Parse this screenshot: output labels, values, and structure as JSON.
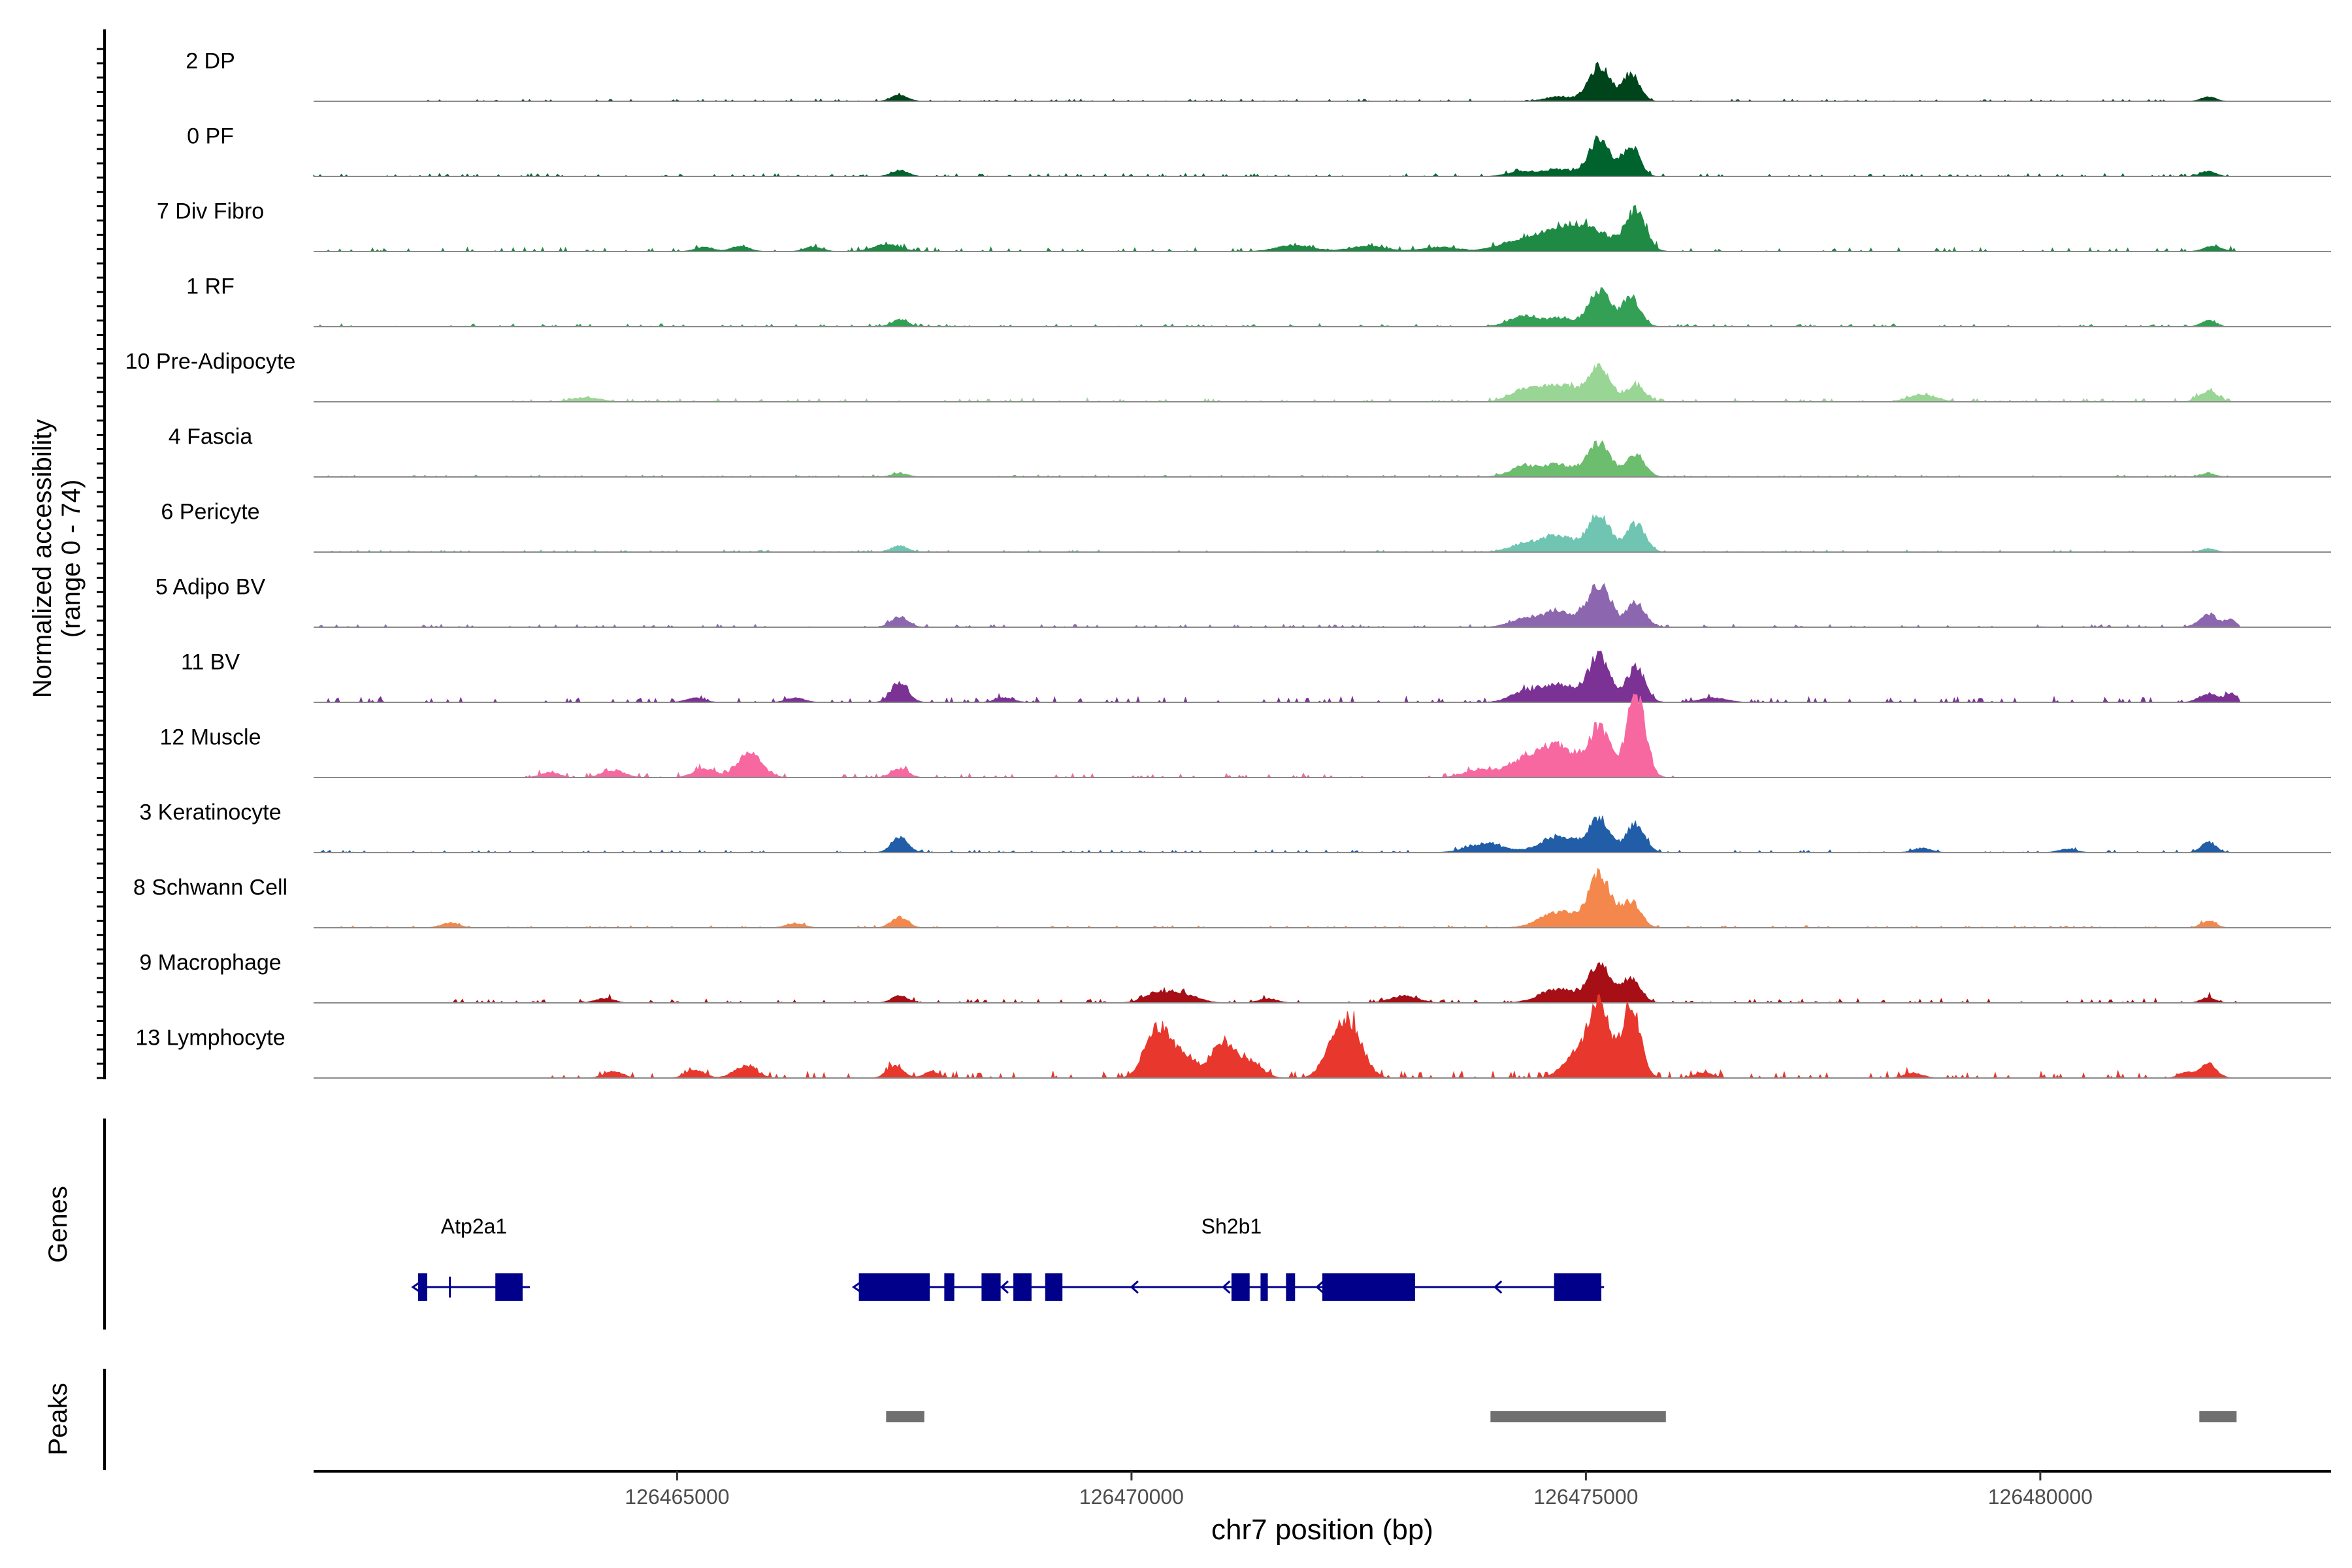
{
  "chart_data": {
    "type": "area",
    "title": "",
    "xlabel": "chr7 position (bp)",
    "ylabel": "Normalized accessibility\n(range 0 - 74)",
    "ylabel_line1": "Normalized accessibility",
    "ylabel_line2": "(range 0 - 74)",
    "y_range": [
      0,
      74
    ],
    "xlim": [
      126461000,
      126483200
    ],
    "x_ticks": [
      126465000,
      126470000,
      126475000,
      126480000
    ],
    "x_tick_labels": [
      "126465000",
      "126470000",
      "126475000",
      "126480000"
    ],
    "track_start": 126461000,
    "track_end": 126482200,
    "series": [
      {
        "name": "2 DP",
        "color": "#00441b",
        "peaks": [
          [
            126467450,
            7,
            90
          ],
          [
            126475150,
            40,
            120
          ],
          [
            126475500,
            32,
            90
          ],
          [
            126474700,
            5,
            150
          ],
          [
            126481850,
            5,
            80
          ]
        ],
        "noise": [
          [
            126462000,
            126481500,
            1.5
          ]
        ]
      },
      {
        "name": "0 PF",
        "color": "#00632e",
        "peaks": [
          [
            126467450,
            7,
            90
          ],
          [
            126475150,
            43,
            120
          ],
          [
            126475500,
            35,
            90
          ],
          [
            126474300,
            6,
            150
          ],
          [
            126474700,
            8,
            150
          ],
          [
            126481850,
            6,
            80
          ]
        ],
        "noise": [
          [
            126461000,
            126482200,
            2
          ]
        ]
      },
      {
        "name": "7 Div Fibro",
        "color": "#1e8a44",
        "peaks": [
          [
            126467300,
            8,
            150
          ],
          [
            126471800,
            7,
            200
          ],
          [
            126472600,
            6,
            200
          ],
          [
            126473400,
            5,
            200
          ],
          [
            126475000,
            28,
            250
          ],
          [
            126475550,
            45,
            110
          ],
          [
            126474600,
            18,
            200
          ],
          [
            126474200,
            10,
            200
          ],
          [
            126465700,
            6,
            100
          ],
          [
            126465300,
            5,
            100
          ],
          [
            126466500,
            5,
            100
          ],
          [
            126481900,
            6,
            100
          ]
        ],
        "noise": [
          [
            126461000,
            126482200,
            3
          ]
        ]
      },
      {
        "name": "1 RF",
        "color": "#33a056",
        "peaks": [
          [
            126467450,
            8,
            90
          ],
          [
            126475150,
            42,
            120
          ],
          [
            126475500,
            33,
            100
          ],
          [
            126474300,
            12,
            150
          ],
          [
            126474700,
            10,
            150
          ],
          [
            126481850,
            7,
            80
          ]
        ],
        "noise": [
          [
            126461000,
            126482200,
            2
          ]
        ]
      },
      {
        "name": "10 Pre-Adipocyte",
        "color": "#99d594",
        "peaks": [
          [
            126475150,
            40,
            120
          ],
          [
            126475550,
            18,
            100
          ],
          [
            126474700,
            20,
            200
          ],
          [
            126474300,
            12,
            150
          ],
          [
            126481850,
            12,
            100
          ],
          [
            126478700,
            8,
            150
          ],
          [
            126464000,
            5,
            150
          ]
        ],
        "noise": [
          [
            126463000,
            126482200,
            2.5
          ]
        ]
      },
      {
        "name": "4 Fascia",
        "color": "#6dbd6e",
        "peaks": [
          [
            126475150,
            38,
            120
          ],
          [
            126475550,
            25,
            100
          ],
          [
            126474700,
            14,
            200
          ],
          [
            126474300,
            10,
            150
          ],
          [
            126467450,
            4,
            90
          ],
          [
            126481850,
            4,
            80
          ]
        ],
        "noise": [
          [
            126461000,
            126482200,
            1.5
          ]
        ]
      },
      {
        "name": "6 Pericyte",
        "color": "#6fc5b1",
        "peaks": [
          [
            126475150,
            42,
            120
          ],
          [
            126475550,
            32,
            100
          ],
          [
            126474700,
            18,
            200
          ],
          [
            126474300,
            8,
            150
          ],
          [
            126467450,
            7,
            90
          ],
          [
            126481850,
            4,
            80
          ]
        ],
        "noise": [
          [
            126461000,
            126482200,
            1.5
          ]
        ]
      },
      {
        "name": "5 Adipo BV",
        "color": "#8c67b0",
        "peaks": [
          [
            126475150,
            48,
            120
          ],
          [
            126475550,
            28,
            100
          ],
          [
            126474700,
            18,
            200
          ],
          [
            126467450,
            12,
            90
          ],
          [
            126481850,
            14,
            100
          ],
          [
            126482100,
            8,
            60
          ],
          [
            126474300,
            8,
            150
          ]
        ],
        "noise": [
          [
            126461000,
            126482200,
            2
          ]
        ]
      },
      {
        "name": "11 BV",
        "color": "#7b3294",
        "peaks": [
          [
            126475150,
            52,
            120
          ],
          [
            126475550,
            40,
            100
          ],
          [
            126474700,
            20,
            200
          ],
          [
            126467450,
            24,
            90
          ],
          [
            126474300,
            10,
            150
          ],
          [
            126481850,
            10,
            100
          ],
          [
            126482100,
            10,
            60
          ],
          [
            126465200,
            5,
            100
          ],
          [
            126466300,
            5,
            100
          ],
          [
            126468600,
            5,
            100
          ],
          [
            126476400,
            5,
            150
          ]
        ],
        "noise": [
          [
            126461000,
            126482200,
            4
          ]
        ]
      },
      {
        "name": "12 Muscle",
        "color": "#f768a1",
        "peaks": [
          [
            126475550,
            95,
            100
          ],
          [
            126475150,
            55,
            120
          ],
          [
            126474700,
            35,
            200
          ],
          [
            126474300,
            18,
            200
          ],
          [
            126473800,
            8,
            150
          ],
          [
            126465800,
            28,
            130
          ],
          [
            126465300,
            10,
            120
          ],
          [
            126467450,
            10,
            90
          ],
          [
            126464300,
            8,
            120
          ],
          [
            126463600,
            6,
            100
          ]
        ],
        "noise": [
          [
            126463200,
            126476000,
            3
          ]
        ]
      },
      {
        "name": "3 Keratinocyte",
        "color": "#225ea8",
        "peaks": [
          [
            126467450,
            18,
            90
          ],
          [
            126475150,
            36,
            120
          ],
          [
            126475550,
            33,
            100
          ],
          [
            126474700,
            18,
            200
          ],
          [
            126473900,
            10,
            200
          ],
          [
            126481850,
            12,
            80
          ],
          [
            126478700,
            5,
            100
          ],
          [
            126480300,
            4,
            100
          ]
        ],
        "noise": [
          [
            126461000,
            126482200,
            2
          ]
        ]
      },
      {
        "name": "8 Schwann Cell",
        "color": "#f4874b",
        "peaks": [
          [
            126475150,
            60,
            120
          ],
          [
            126475500,
            30,
            100
          ],
          [
            126474700,
            18,
            200
          ],
          [
            126467450,
            12,
            90
          ],
          [
            126481850,
            8,
            80
          ],
          [
            126466300,
            5,
            100
          ],
          [
            126462500,
            5,
            100
          ]
        ],
        "noise": [
          [
            126461000,
            126482200,
            1.5
          ]
        ]
      },
      {
        "name": "9 Macrophage",
        "color": "#a50f15",
        "peaks": [
          [
            126475150,
            42,
            120
          ],
          [
            126475500,
            28,
            100
          ],
          [
            126474700,
            16,
            200
          ],
          [
            126470300,
            12,
            150
          ],
          [
            126470600,
            8,
            150
          ],
          [
            126467450,
            8,
            90
          ],
          [
            126481850,
            6,
            80
          ],
          [
            126473000,
            8,
            150
          ],
          [
            126464200,
            5,
            100
          ],
          [
            126471500,
            5,
            100
          ]
        ],
        "noise": [
          [
            126462500,
            126482200,
            3
          ]
        ]
      },
      {
        "name": "13 Lymphocyte",
        "color": "#e8372c",
        "peaks": [
          [
            126475150,
            76,
            120
          ],
          [
            126475500,
            82,
            100
          ],
          [
            126474900,
            25,
            150
          ],
          [
            126470300,
            58,
            140
          ],
          [
            126470600,
            22,
            120
          ],
          [
            126471000,
            40,
            130
          ],
          [
            126471300,
            18,
            130
          ],
          [
            126472400,
            62,
            140
          ],
          [
            126472200,
            20,
            120
          ],
          [
            126467400,
            14,
            90
          ],
          [
            126467800,
            8,
            80
          ],
          [
            126465750,
            14,
            120
          ],
          [
            126465200,
            9,
            100
          ],
          [
            126464300,
            8,
            100
          ],
          [
            126481850,
            16,
            90
          ],
          [
            126481600,
            6,
            80
          ],
          [
            126476300,
            6,
            100
          ],
          [
            126478600,
            6,
            100
          ]
        ],
        "noise": [
          [
            126463500,
            126482200,
            5
          ]
        ]
      }
    ],
    "genes_label": "Genes",
    "peaks_label": "Peaks",
    "genes": [
      {
        "name": "Atp2a1",
        "strand": "-",
        "start": 126462150,
        "end": 126463380,
        "exons": [
          [
            126462150,
            126462250
          ],
          [
            126463000,
            126463300
          ]
        ],
        "introns_ticks": [
          126462500
        ]
      },
      {
        "name": "Sh2b1",
        "strand": "-",
        "start": 126467000,
        "end": 126475200,
        "exons": [
          [
            126467000,
            126467780
          ],
          [
            126467940,
            126468050
          ],
          [
            126468350,
            126468560
          ],
          [
            126468700,
            126468900
          ],
          [
            126469050,
            126469240
          ],
          [
            126471100,
            126471300
          ],
          [
            126471420,
            126471500
          ],
          [
            126471700,
            126471800
          ],
          [
            126472100,
            126473120
          ],
          [
            126474650,
            126475170
          ]
        ],
        "arrow_positions": [
          126468570,
          126470000,
          126471010,
          126472040,
          126474000
        ]
      }
    ],
    "peak_regions": [
      [
        126467300,
        126467720
      ],
      [
        126473950,
        126475880
      ],
      [
        126481750,
        126482160
      ]
    ]
  }
}
